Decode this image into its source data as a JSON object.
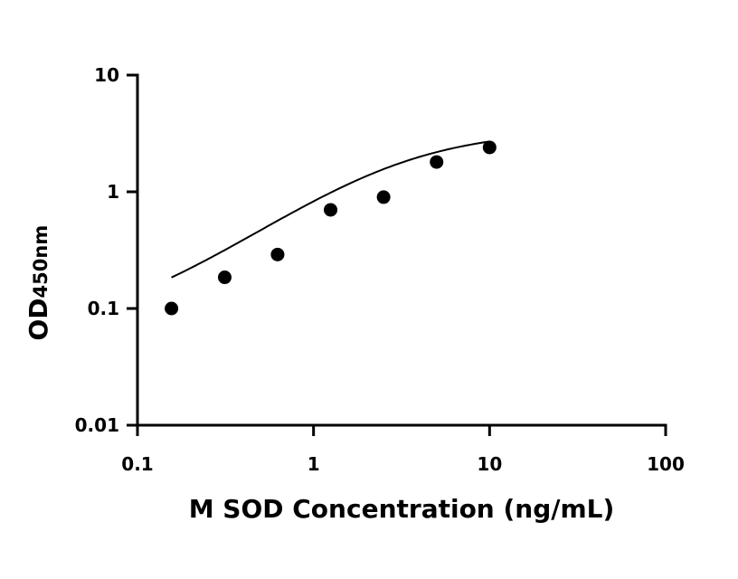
{
  "chart_data": {
    "type": "scatter",
    "title": "",
    "xlabel": "M SOD Concentration (ng/mL)",
    "ylabel_main": "OD",
    "ylabel_sub": "450nm",
    "xscale": "log",
    "yscale": "log",
    "xlim": [
      0.1,
      100
    ],
    "ylim": [
      0.01,
      10
    ],
    "x_ticks": [
      0.1,
      1,
      10,
      100
    ],
    "x_tick_labels": [
      "0.1",
      "1",
      "10",
      "100"
    ],
    "y_ticks": [
      0.01,
      0.1,
      1,
      10
    ],
    "y_tick_labels": [
      "0.01",
      "0.1",
      "1",
      "10"
    ],
    "grid": false,
    "legend": "none",
    "series": [
      {
        "x": [
          0.156,
          0.313,
          0.625,
          1.25,
          2.5,
          5,
          10
        ],
        "y": [
          0.1,
          0.185,
          0.29,
          0.7,
          0.9,
          1.8,
          2.4
        ]
      }
    ],
    "fit_curve": {
      "type": "4PL",
      "bottom": 0.06,
      "top": 3.4,
      "ec50": 3.0,
      "hill": 1.1
    },
    "colors": {
      "marker": "#000000",
      "line": "#000000",
      "axis": "#000000"
    }
  }
}
